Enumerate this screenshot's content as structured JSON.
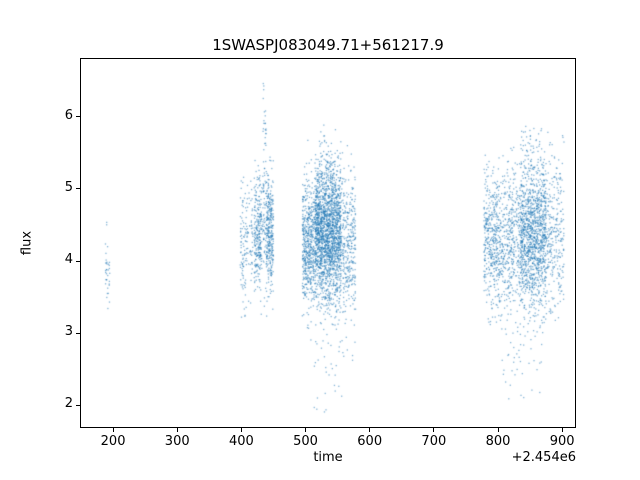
{
  "chart_data": {
    "type": "scatter",
    "title": "1SWASPJ083049.71+561217.9",
    "xlabel": "time",
    "ylabel": "flux",
    "x_offset_text": "+2.454e6",
    "xlim": [
      150,
      920
    ],
    "ylim": [
      1.7,
      6.8
    ],
    "xticks": [
      200,
      300,
      400,
      500,
      600,
      700,
      800,
      900
    ],
    "yticks": [
      2,
      3,
      4,
      5,
      6
    ],
    "grid": false,
    "legend": "none",
    "marker_color": "#1f77b4",
    "marker_alpha": 0.55,
    "marker_size_px": 1.3,
    "clusters": [
      {
        "x_min": 188,
        "x_max": 195,
        "count": 35,
        "flux_mean": 3.9,
        "flux_std": 0.3,
        "flux_min": 3.3,
        "flux_max": 4.55
      },
      {
        "x_min": 398,
        "x_max": 408,
        "count": 90,
        "flux_mean": 4.1,
        "flux_std": 0.5,
        "flux_min": 3.2,
        "flux_max": 5.2
      },
      {
        "x_min": 408,
        "x_max": 418,
        "count": 60,
        "flux_mean": 4.3,
        "flux_std": 0.45,
        "flux_min": 3.3,
        "flux_max": 5.3
      },
      {
        "x_min": 420,
        "x_max": 432,
        "count": 260,
        "flux_mean": 4.4,
        "flux_std": 0.4,
        "flux_min": 3.2,
        "flux_max": 5.4
      },
      {
        "x_min": 433,
        "x_max": 439,
        "count": 90,
        "flux_mean": 4.9,
        "flux_std": 0.8,
        "flux_min": 3.3,
        "flux_max": 6.6
      },
      {
        "x_min": 439,
        "x_max": 450,
        "count": 320,
        "flux_mean": 4.4,
        "flux_std": 0.4,
        "flux_min": 3.2,
        "flux_max": 5.5
      },
      {
        "x_min": 495,
        "x_max": 515,
        "count": 550,
        "flux_mean": 4.25,
        "flux_std": 0.45,
        "flux_min": 2.9,
        "flux_max": 5.7
      },
      {
        "x_min": 515,
        "x_max": 555,
        "count": 2000,
        "flux_mean": 4.4,
        "flux_std": 0.5,
        "flux_min": 2.0,
        "flux_max": 5.95
      },
      {
        "x_min": 555,
        "x_max": 578,
        "count": 350,
        "flux_mean": 4.2,
        "flux_std": 0.55,
        "flux_min": 2.3,
        "flux_max": 5.6
      },
      {
        "x_min": 505,
        "x_max": 560,
        "count": 30,
        "flux_mean": 2.45,
        "flux_std": 0.3,
        "flux_min": 1.85,
        "flux_max": 3.0
      },
      {
        "x_min": 778,
        "x_max": 800,
        "count": 380,
        "flux_mean": 4.3,
        "flux_std": 0.5,
        "flux_min": 3.1,
        "flux_max": 5.6
      },
      {
        "x_min": 800,
        "x_max": 835,
        "count": 500,
        "flux_mean": 4.25,
        "flux_std": 0.55,
        "flux_min": 2.6,
        "flux_max": 5.8
      },
      {
        "x_min": 835,
        "x_max": 875,
        "count": 1300,
        "flux_mean": 4.35,
        "flux_std": 0.55,
        "flux_min": 2.2,
        "flux_max": 6.05
      },
      {
        "x_min": 875,
        "x_max": 903,
        "count": 280,
        "flux_mean": 4.45,
        "flux_std": 0.6,
        "flux_min": 2.9,
        "flux_max": 5.95
      },
      {
        "x_min": 808,
        "x_max": 872,
        "count": 25,
        "flux_mean": 2.5,
        "flux_std": 0.3,
        "flux_min": 2.05,
        "flux_max": 3.0
      }
    ]
  }
}
